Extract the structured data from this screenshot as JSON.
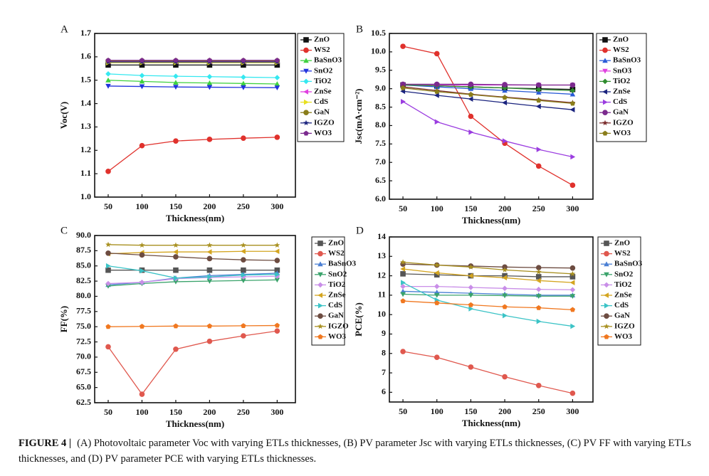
{
  "chart_data": [
    {
      "type": "line",
      "label": "A",
      "xlabel": "Thickness(nm)",
      "ylabel": "Voc(V)",
      "x": [
        50,
        100,
        150,
        200,
        250,
        300
      ],
      "xlim": [
        30,
        327
      ],
      "xticks": [
        50,
        100,
        150,
        200,
        250,
        300
      ],
      "ylim": [
        1,
        1.7
      ],
      "yticks": [
        {
          "value": 1,
          "label": "1.0"
        },
        1.1,
        1.2,
        1.3,
        1.4,
        1.5,
        1.6,
        1.7
      ],
      "series": [
        {
          "name": "ZnO",
          "color": "#111111",
          "values": [
            1.565,
            1.565,
            1.565,
            1.565,
            1.565,
            1.565
          ]
        },
        {
          "name": "WS2",
          "color": "#e0312c",
          "values": [
            1.11,
            1.22,
            1.24,
            1.247,
            1.252,
            1.256
          ]
        },
        {
          "name": "BaSnO3",
          "color": "#3fd13f",
          "values": [
            1.5,
            1.495,
            1.49,
            1.488,
            1.486,
            1.484
          ]
        },
        {
          "name": "SnO2",
          "color": "#2233dd",
          "values": [
            1.475,
            1.473,
            1.471,
            1.47,
            1.469,
            1.468
          ]
        },
        {
          "name": "TiO2",
          "color": "#35e8f0",
          "values": [
            1.527,
            1.52,
            1.517,
            1.515,
            1.513,
            1.511
          ]
        },
        {
          "name": "ZnSe",
          "color": "#e040e0",
          "values": [
            1.58,
            1.58,
            1.58,
            1.58,
            1.58,
            1.58
          ]
        },
        {
          "name": "CdS",
          "color": "#e8e020",
          "values": [
            1.575,
            1.575,
            1.575,
            1.575,
            1.575,
            1.575
          ]
        },
        {
          "name": "GaN",
          "color": "#8a7d1a",
          "values": [
            1.583,
            1.583,
            1.583,
            1.583,
            1.583,
            1.583
          ]
        },
        {
          "name": "IGZO",
          "color": "#1a237e",
          "values": [
            1.578,
            1.578,
            1.578,
            1.578,
            1.578,
            1.578
          ]
        },
        {
          "name": "WO3",
          "color": "#7b2a8e",
          "values": [
            1.585,
            1.585,
            1.585,
            1.585,
            1.585,
            1.585
          ]
        }
      ]
    },
    {
      "type": "line",
      "label": "B",
      "xlabel": "Thickness(nm)",
      "ylabel": "Jsc(mA·cm⁻²)",
      "x": [
        50,
        100,
        150,
        200,
        250,
        300
      ],
      "xlim": [
        30,
        330
      ],
      "xticks": [
        50,
        100,
        150,
        200,
        250,
        300
      ],
      "ylim": [
        6,
        10.5
      ],
      "yticks": [
        {
          "value": 6,
          "label": "6.0"
        },
        6.5,
        {
          "value": 7,
          "label": "7.0"
        },
        7.5,
        {
          "value": 8,
          "label": "8.0"
        },
        8.5,
        {
          "value": 9,
          "label": "9.0"
        },
        9.5,
        {
          "value": 10,
          "label": "10.0"
        },
        10.5
      ],
      "series": [
        {
          "name": "ZnO",
          "color": "#111111",
          "values": [
            9.1,
            9.08,
            9.05,
            9.02,
            9.0,
            8.98
          ]
        },
        {
          "name": "WS2",
          "color": "#e0312c",
          "values": [
            10.15,
            9.95,
            8.25,
            7.52,
            6.9,
            6.38
          ]
        },
        {
          "name": "BaSnO3",
          "color": "#2a5bd7",
          "values": [
            9.1,
            9.05,
            9.0,
            8.95,
            8.9,
            8.85
          ]
        },
        {
          "name": "SnO3",
          "color": "#e040e0",
          "values": [
            9.1,
            9.1,
            9.1,
            9.1,
            9.1,
            9.1
          ]
        },
        {
          "name": "TiO2",
          "color": "#2e8b2e",
          "values": [
            9.1,
            9.08,
            9.05,
            9.02,
            8.98,
            8.95
          ]
        },
        {
          "name": "ZnSe",
          "color": "#1a237e",
          "values": [
            8.93,
            8.82,
            8.72,
            8.62,
            8.52,
            8.43
          ]
        },
        {
          "name": "CdS",
          "color": "#9b3de0",
          "values": [
            8.65,
            8.1,
            7.82,
            7.58,
            7.35,
            7.15
          ]
        },
        {
          "name": "GaN",
          "color": "#7b2a8e",
          "values": [
            9.12,
            9.12,
            9.12,
            9.11,
            9.1,
            9.1
          ]
        },
        {
          "name": "IGZO",
          "color": "#7a2b2b",
          "values": [
            9.05,
            8.95,
            8.85,
            8.77,
            8.7,
            8.62
          ]
        },
        {
          "name": "WO3",
          "color": "#8a7d1a",
          "values": [
            9.02,
            8.92,
            8.84,
            8.76,
            8.68,
            8.6
          ]
        }
      ]
    },
    {
      "type": "line",
      "label": "C",
      "xlabel": "Thickness(nm)",
      "ylabel": "FF(%)",
      "x": [
        50,
        100,
        150,
        200,
        250,
        300
      ],
      "xlim": [
        30,
        327
      ],
      "xticks": [
        50,
        100,
        150,
        200,
        250,
        300
      ],
      "ylim": [
        62.5,
        90
      ],
      "yticks": [
        62.5,
        {
          "value": 65,
          "label": "65.0"
        },
        67.5,
        {
          "value": 70,
          "label": "70.0"
        },
        72.5,
        {
          "value": 75,
          "label": "75.0"
        },
        77.5,
        {
          "value": 80,
          "label": "80.0"
        },
        82.5,
        {
          "value": 85,
          "label": "85.0"
        },
        87.5,
        {
          "value": 90,
          "label": "90.0"
        }
      ],
      "series": [
        {
          "name": "ZnO",
          "color": "#555555",
          "values": [
            84.3,
            84.3,
            84.3,
            84.3,
            84.3,
            84.3
          ]
        },
        {
          "name": "WS2",
          "color": "#e0584e",
          "values": [
            71.7,
            63.9,
            71.3,
            72.6,
            73.5,
            74.3
          ]
        },
        {
          "name": "BaSnO3",
          "color": "#4a7fd4",
          "values": [
            81.9,
            82.3,
            83.0,
            83.4,
            83.6,
            83.8
          ]
        },
        {
          "name": "SnO2",
          "color": "#3aa36b",
          "values": [
            81.7,
            82.1,
            82.4,
            82.5,
            82.6,
            82.7
          ]
        },
        {
          "name": "TiO2",
          "color": "#c98ee8",
          "values": [
            82.1,
            82.3,
            82.9,
            83.1,
            83.2,
            83.3
          ]
        },
        {
          "name": "ZnSe",
          "color": "#d4a520",
          "values": [
            87.0,
            87.2,
            87.3,
            87.3,
            87.4,
            87.4
          ]
        },
        {
          "name": "CdS",
          "color": "#3bc3c6",
          "values": [
            85.0,
            84.2,
            83.0,
            83.2,
            83.5,
            83.6
          ]
        },
        {
          "name": "GaN",
          "color": "#6d4c41",
          "values": [
            87.1,
            86.8,
            86.5,
            86.2,
            86.0,
            85.9
          ]
        },
        {
          "name": "IGZO",
          "color": "#a89020",
          "values": [
            88.5,
            88.4,
            88.4,
            88.4,
            88.4,
            88.4
          ]
        },
        {
          "name": "WO3",
          "color": "#f07820",
          "values": [
            75.0,
            75.05,
            75.1,
            75.1,
            75.15,
            75.2
          ]
        }
      ]
    },
    {
      "type": "line",
      "label": "D",
      "xlabel": "Thickness(nm)",
      "ylabel": "PCE(%)",
      "x": [
        50,
        100,
        150,
        200,
        250,
        300
      ],
      "xlim": [
        30,
        330
      ],
      "xticks": [
        50,
        100,
        150,
        200,
        250,
        300
      ],
      "ylim": [
        5.5,
        14
      ],
      "yticks": [
        6,
        7,
        8,
        9,
        10,
        11,
        12,
        13,
        14
      ],
      "series": [
        {
          "name": "ZnO",
          "color": "#555555",
          "values": [
            12.1,
            12.05,
            12.0,
            12.0,
            11.95,
            11.95
          ]
        },
        {
          "name": "WS2",
          "color": "#e0584e",
          "values": [
            8.1,
            7.8,
            7.3,
            6.8,
            6.35,
            5.95
          ]
        },
        {
          "name": "BaSnO3",
          "color": "#4a7fd4",
          "values": [
            11.2,
            11.15,
            11.1,
            11.05,
            11.0,
            11.0
          ]
        },
        {
          "name": "SnO2",
          "color": "#3aa36b",
          "values": [
            11.05,
            11.0,
            11.0,
            10.98,
            10.95,
            10.95
          ]
        },
        {
          "name": "TiO2",
          "color": "#c98ee8",
          "values": [
            11.45,
            11.45,
            11.4,
            11.35,
            11.3,
            11.28
          ]
        },
        {
          "name": "ZnSe",
          "color": "#d4a520",
          "values": [
            12.35,
            12.15,
            12.0,
            11.9,
            11.75,
            11.65
          ]
        },
        {
          "name": "CdS",
          "color": "#3bc3c6",
          "values": [
            11.65,
            10.75,
            10.3,
            9.95,
            9.65,
            9.4
          ]
        },
        {
          "name": "GaN",
          "color": "#6d4c41",
          "values": [
            12.6,
            12.55,
            12.5,
            12.45,
            12.42,
            12.4
          ]
        },
        {
          "name": "IGZO",
          "color": "#a89020",
          "values": [
            12.7,
            12.55,
            12.45,
            12.3,
            12.2,
            12.1
          ]
        },
        {
          "name": "WO3",
          "color": "#f07820",
          "values": [
            10.7,
            10.6,
            10.5,
            10.4,
            10.35,
            10.25
          ]
        }
      ]
    }
  ],
  "caption": {
    "label": "FIGURE 4  |",
    "text": "(A) Photovoltaic parameter Voc with varying ETLs thicknesses, (B) PV parameter Jsc with varying ETLs thicknesses, (C) PV FF with varying ETLs thicknesses, and (D) PV parameter PCE with varying ETLs thicknesses."
  }
}
